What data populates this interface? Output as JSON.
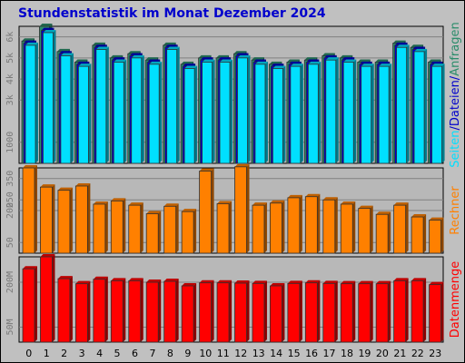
{
  "title": "Stundenstatistik im Monat Dezember 2024",
  "colors": {
    "background": "#c0c0c0",
    "panel": "#b8b8b8",
    "title": "#0000cc",
    "grid": "#808080",
    "tick_label": "#7a7a7a",
    "hits": "#2a8c6a",
    "files": "#0000cc",
    "pages": "#00e0ff",
    "bytes": "#ff8000",
    "visits": "#ff0000",
    "edge": "#303030"
  },
  "chart_data": [
    {
      "type": "bar",
      "categories": [
        "0",
        "1",
        "2",
        "3",
        "4",
        "5",
        "6",
        "7",
        "8",
        "9",
        "10",
        "11",
        "12",
        "13",
        "14",
        "15",
        "16",
        "17",
        "18",
        "19",
        "20",
        "21",
        "22",
        "23"
      ],
      "ylabel_parts": [
        "Seiten",
        "/",
        "Dateien",
        "/",
        "Anfragen"
      ],
      "y_ticks": [
        "1000",
        "3k",
        "4k",
        "5k",
        "6k"
      ],
      "y_tick_values": [
        1000,
        3000,
        4000,
        5000,
        6000
      ],
      "ylim": [
        0,
        6500
      ],
      "grid": true,
      "series": [
        {
          "name": "Anfragen",
          "values": [
            5800,
            6500,
            5300,
            4800,
            5600,
            5000,
            5200,
            4900,
            5600,
            4700,
            5000,
            5000,
            5200,
            4900,
            4700,
            4800,
            4900,
            5100,
            5000,
            4800,
            4800,
            5700,
            5500,
            4800
          ]
        },
        {
          "name": "Dateien",
          "values": [
            5700,
            6300,
            5200,
            4700,
            5500,
            4900,
            5100,
            4800,
            5500,
            4600,
            4900,
            4900,
            5100,
            4800,
            4600,
            4700,
            4800,
            5000,
            4900,
            4700,
            4700,
            5600,
            5400,
            4700
          ]
        },
        {
          "name": "Seiten",
          "values": [
            5600,
            6200,
            5100,
            4600,
            5400,
            4800,
            5000,
            4700,
            5400,
            4500,
            4800,
            4800,
            5000,
            4700,
            4500,
            4600,
            4700,
            4900,
            4800,
            4600,
            4600,
            5500,
            5300,
            4600
          ]
        }
      ]
    },
    {
      "type": "bar",
      "categories": [
        "0",
        "1",
        "2",
        "3",
        "4",
        "5",
        "6",
        "7",
        "8",
        "9",
        "10",
        "11",
        "12",
        "13",
        "14",
        "15",
        "16",
        "17",
        "18",
        "19",
        "20",
        "21",
        "22",
        "23"
      ],
      "ylabel": "Rechner",
      "y_ticks": [
        "50",
        "200",
        "250",
        "350"
      ],
      "y_tick_values": [
        50,
        200,
        250,
        350
      ],
      "ylim": [
        0,
        400
      ],
      "grid": true,
      "series": [
        {
          "name": "Rechner",
          "values": [
            400,
            310,
            295,
            315,
            230,
            245,
            225,
            185,
            220,
            195,
            385,
            232,
            405,
            225,
            235,
            260,
            265,
            250,
            230,
            210,
            182,
            225,
            170,
            155
          ]
        }
      ]
    },
    {
      "type": "bar",
      "categories": [
        "0",
        "1",
        "2",
        "3",
        "4",
        "5",
        "6",
        "7",
        "8",
        "9",
        "10",
        "11",
        "12",
        "13",
        "14",
        "15",
        "16",
        "17",
        "18",
        "19",
        "20",
        "21",
        "22",
        "23"
      ],
      "ylabel": "Datenmenge",
      "y_ticks": [
        "50M",
        "200M"
      ],
      "y_tick_values": [
        50,
        200
      ],
      "ylim": [
        0,
        285
      ],
      "grid": true,
      "series": [
        {
          "name": "Datenmenge",
          "values": [
            245,
            285,
            212,
            195,
            210,
            205,
            205,
            200,
            203,
            188,
            198,
            198,
            197,
            196,
            188,
            196,
            198,
            196,
            195,
            195,
            195,
            205,
            205,
            192
          ]
        }
      ]
    }
  ]
}
